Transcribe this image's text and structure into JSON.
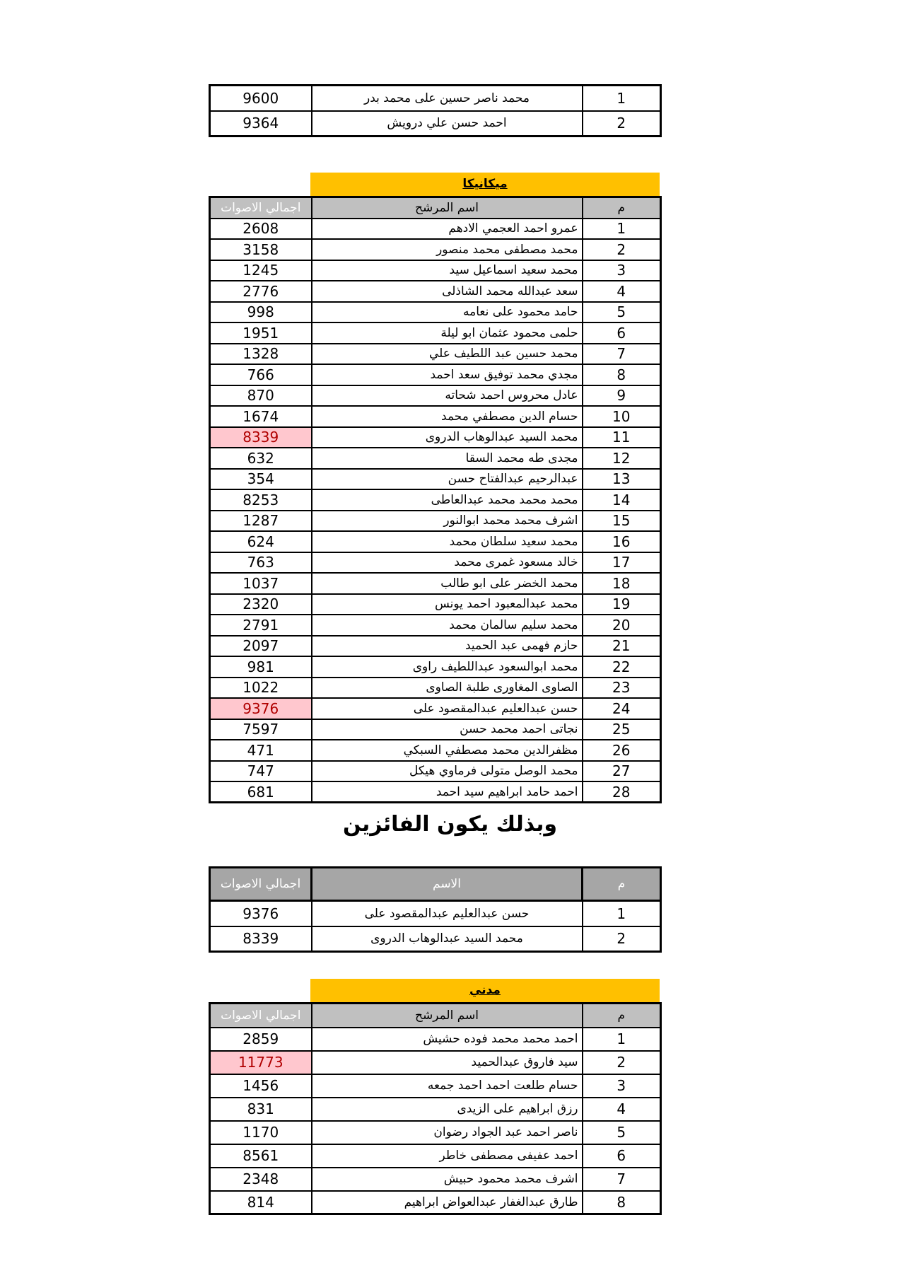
{
  "colors": {
    "banner_yellow": "#FFC000",
    "header_gray": "#C0C0C0",
    "winner_header_gray": "#A6A6A6",
    "highlight_pink_bg": "#FFC7CE",
    "highlight_red_text": "#B00000",
    "border_black": "#000000"
  },
  "top_table": {
    "rows": [
      {
        "num": "1",
        "name": "محمد ناصر حسين على محمد بدر",
        "votes": "9600"
      },
      {
        "num": "2",
        "name": "احمد حسن علي درويش",
        "votes": "9364"
      }
    ]
  },
  "mechanics_table": {
    "banner": "ميكانيكا",
    "headers": {
      "num": "م",
      "name": "اسم المرشح",
      "votes": "اجمالي الاصوات"
    },
    "rows": [
      {
        "num": "1",
        "name": "عمرو احمد العجمي الادهم",
        "votes": "2608"
      },
      {
        "num": "2",
        "name": "محمد مصطفى محمد منصور",
        "votes": "3158"
      },
      {
        "num": "3",
        "name": "محمد سعيد اسماعيل سيد",
        "votes": "1245"
      },
      {
        "num": "4",
        "name": "سعد عبدالله محمد الشاذلى",
        "votes": "2776"
      },
      {
        "num": "5",
        "name": "حامد محمود على نعامه",
        "votes": "998"
      },
      {
        "num": "6",
        "name": "حلمى محمود عثمان ابو ليلة",
        "votes": "1951"
      },
      {
        "num": "7",
        "name": "محمد حسين عبد اللطيف علي",
        "votes": "1328"
      },
      {
        "num": "8",
        "name": "مجدي محمد توفيق سعد احمد",
        "votes": "766"
      },
      {
        "num": "9",
        "name": "عادل محروس احمد شحاته",
        "votes": "870"
      },
      {
        "num": "10",
        "name": "حسام الدين مصطفي محمد",
        "votes": "1674"
      },
      {
        "num": "11",
        "name": "محمد السيد عبدالوهاب الدروى",
        "votes": "8339",
        "highlight": true
      },
      {
        "num": "12",
        "name": "مجدى طه محمد السقا",
        "votes": "632"
      },
      {
        "num": "13",
        "name": "عبدالرحيم عبدالفتاح حسن",
        "votes": "354"
      },
      {
        "num": "14",
        "name": "محمد محمد محمد عبدالعاطى",
        "votes": "8253"
      },
      {
        "num": "15",
        "name": "اشرف محمد محمد ابوالنور",
        "votes": "1287"
      },
      {
        "num": "16",
        "name": "محمد سعيد سلطان محمد",
        "votes": "624"
      },
      {
        "num": "17",
        "name": "خالد مسعود غمرى محمد",
        "votes": "763"
      },
      {
        "num": "18",
        "name": "محمد الخضر على ابو طالب",
        "votes": "1037"
      },
      {
        "num": "19",
        "name": "محمد عبدالمعبود احمد يونس",
        "votes": "2320"
      },
      {
        "num": "20",
        "name": "محمد سليم سالمان محمد",
        "votes": "2791"
      },
      {
        "num": "21",
        "name": "حازم فهمى عبد الحميد",
        "votes": "2097"
      },
      {
        "num": "22",
        "name": "محمد ابوالسعود عبداللطيف راوى",
        "votes": "981"
      },
      {
        "num": "23",
        "name": "الصاوى المغاورى طلبة الصاوى",
        "votes": "1022"
      },
      {
        "num": "24",
        "name": "حسن عبدالعليم عبدالمقصود على",
        "votes": "9376",
        "highlight": true
      },
      {
        "num": "25",
        "name": "نجاتى احمد محمد حسن",
        "votes": "7597"
      },
      {
        "num": "26",
        "name": "مظفرالدين محمد مصطفي السبكي",
        "votes": "471"
      },
      {
        "num": "27",
        "name": "محمد الوصل متولى فرماوي هيكل",
        "votes": "747"
      },
      {
        "num": "28",
        "name": "احمد حامد ابراهيم سيد احمد",
        "votes": "681"
      }
    ]
  },
  "winners_heading": "وبذلك يكون الفائزين",
  "winners_table": {
    "headers": {
      "num": "م",
      "name": "الاسم",
      "votes": "اجمالي الاصوات"
    },
    "rows": [
      {
        "num": "1",
        "name": "حسن عبدالعليم عبدالمقصود على",
        "votes": "9376"
      },
      {
        "num": "2",
        "name": "محمد السيد عبدالوهاب الدروى",
        "votes": "8339"
      }
    ]
  },
  "civil_table": {
    "banner": "مدني",
    "headers": {
      "num": "م",
      "name": "اسم المرشح",
      "votes": "اجمالي الاصوات"
    },
    "rows": [
      {
        "num": "1",
        "name": "احمد محمد محمد فوده حشيش",
        "votes": "2859"
      },
      {
        "num": "2",
        "name": "سيد فاروق عبدالحميد",
        "votes": "11773",
        "highlight": true
      },
      {
        "num": "3",
        "name": "حسام طلعت احمد احمد جمعه",
        "votes": "1456"
      },
      {
        "num": "4",
        "name": "رزق ابراهيم على الزيدى",
        "votes": "831"
      },
      {
        "num": "5",
        "name": "ناصر احمد عبد الجواد رضوان",
        "votes": "1170"
      },
      {
        "num": "6",
        "name": "احمد عفيفى مصطفى خاطر",
        "votes": "8561"
      },
      {
        "num": "7",
        "name": "اشرف محمد محمود حبيش",
        "votes": "2348"
      },
      {
        "num": "8",
        "name": "طارق عبدالغفار عبدالعواض ابراهيم",
        "votes": "814"
      }
    ]
  }
}
